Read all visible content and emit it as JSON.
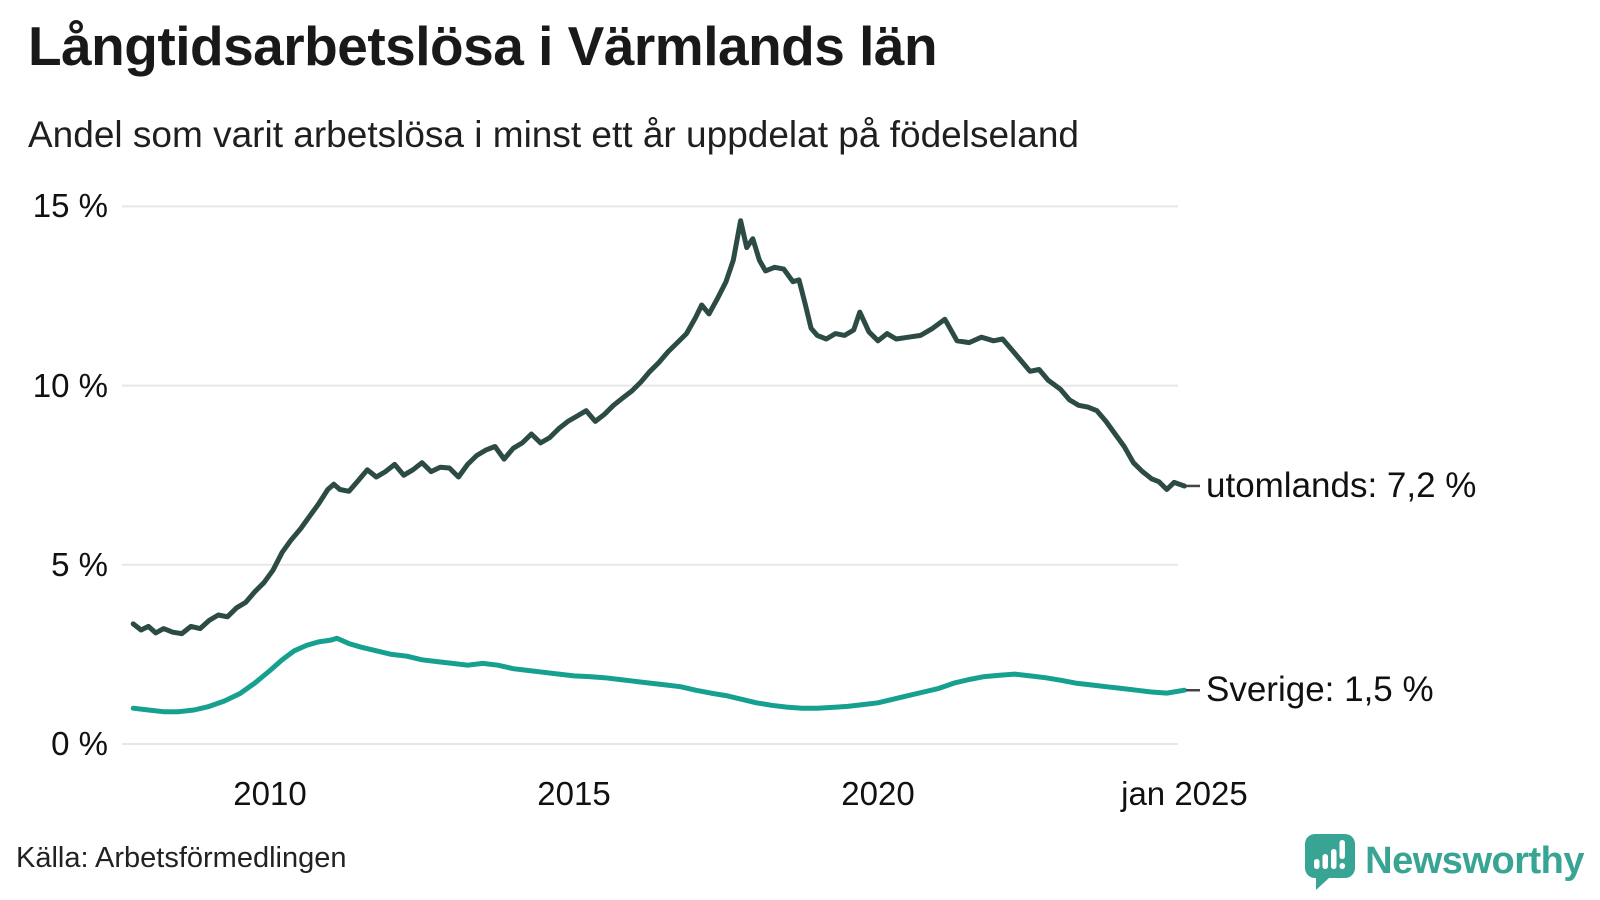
{
  "header": {
    "title": "Långtidsarbetslösa i Värmlands län",
    "subtitle": "Andel som varit arbetslösa i minst ett år uppdelat på födelseland"
  },
  "footer": {
    "source": "Källa: Arbetsförmedlingen",
    "brand": "Newsworthy",
    "brand_color": "#38a493",
    "brand_icon": "speech-bubble-bar-chart-exclamation"
  },
  "chart_data": {
    "type": "line",
    "title": "Långtidsarbetslösa i Värmlands län",
    "subtitle": "Andel som varit arbetslösa i minst ett år uppdelat på födelseland",
    "xlabel": "",
    "ylabel": "",
    "ylim": [
      0,
      15
    ],
    "xlim": [
      2007.7,
      2025.1
    ],
    "grid": true,
    "legend_position": "right-end-labels",
    "gridline_color": "#e7e7e7",
    "y_ticks": [
      {
        "label": "15 %",
        "value": 15
      },
      {
        "label": "10 %",
        "value": 10
      },
      {
        "label": "5 %",
        "value": 5
      },
      {
        "label": "0 %",
        "value": 0
      }
    ],
    "x_ticks": [
      {
        "label": "2010",
        "t": 2010
      },
      {
        "label": "2015",
        "t": 2015
      },
      {
        "label": "2020",
        "t": 2020
      },
      {
        "label": "jan 2025",
        "t": 2025.04
      }
    ],
    "series": [
      {
        "name": "utomlands",
        "end_label": "utomlands: 7,2 %",
        "end_value": 7.2,
        "color": "#2c4b44",
        "points": [
          [
            2007.75,
            3.35
          ],
          [
            2007.88,
            3.18
          ],
          [
            2008.0,
            3.28
          ],
          [
            2008.12,
            3.1
          ],
          [
            2008.25,
            3.22
          ],
          [
            2008.4,
            3.12
          ],
          [
            2008.55,
            3.08
          ],
          [
            2008.7,
            3.28
          ],
          [
            2008.85,
            3.22
          ],
          [
            2009.0,
            3.45
          ],
          [
            2009.15,
            3.6
          ],
          [
            2009.3,
            3.55
          ],
          [
            2009.45,
            3.8
          ],
          [
            2009.6,
            3.95
          ],
          [
            2009.75,
            4.25
          ],
          [
            2009.9,
            4.5
          ],
          [
            2010.05,
            4.85
          ],
          [
            2010.2,
            5.35
          ],
          [
            2010.35,
            5.7
          ],
          [
            2010.5,
            6.0
          ],
          [
            2010.65,
            6.35
          ],
          [
            2010.8,
            6.7
          ],
          [
            2010.95,
            7.1
          ],
          [
            2011.05,
            7.25
          ],
          [
            2011.15,
            7.1
          ],
          [
            2011.3,
            7.05
          ],
          [
            2011.45,
            7.35
          ],
          [
            2011.6,
            7.65
          ],
          [
            2011.75,
            7.45
          ],
          [
            2011.9,
            7.6
          ],
          [
            2012.05,
            7.8
          ],
          [
            2012.2,
            7.5
          ],
          [
            2012.35,
            7.65
          ],
          [
            2012.5,
            7.85
          ],
          [
            2012.65,
            7.6
          ],
          [
            2012.8,
            7.72
          ],
          [
            2012.95,
            7.7
          ],
          [
            2013.1,
            7.45
          ],
          [
            2013.25,
            7.8
          ],
          [
            2013.4,
            8.05
          ],
          [
            2013.55,
            8.2
          ],
          [
            2013.7,
            8.3
          ],
          [
            2013.85,
            7.95
          ],
          [
            2014.0,
            8.25
          ],
          [
            2014.15,
            8.4
          ],
          [
            2014.3,
            8.65
          ],
          [
            2014.45,
            8.4
          ],
          [
            2014.6,
            8.55
          ],
          [
            2014.75,
            8.8
          ],
          [
            2014.9,
            9.0
          ],
          [
            2015.05,
            9.15
          ],
          [
            2015.2,
            9.3
          ],
          [
            2015.35,
            9.0
          ],
          [
            2015.5,
            9.2
          ],
          [
            2015.65,
            9.45
          ],
          [
            2015.8,
            9.65
          ],
          [
            2015.95,
            9.85
          ],
          [
            2016.1,
            10.1
          ],
          [
            2016.25,
            10.4
          ],
          [
            2016.4,
            10.65
          ],
          [
            2016.55,
            10.95
          ],
          [
            2016.7,
            11.2
          ],
          [
            2016.85,
            11.45
          ],
          [
            2017.0,
            11.9
          ],
          [
            2017.1,
            12.25
          ],
          [
            2017.22,
            12.0
          ],
          [
            2017.35,
            12.4
          ],
          [
            2017.5,
            12.9
          ],
          [
            2017.62,
            13.5
          ],
          [
            2017.74,
            14.6
          ],
          [
            2017.84,
            13.85
          ],
          [
            2017.94,
            14.1
          ],
          [
            2018.05,
            13.5
          ],
          [
            2018.15,
            13.2
          ],
          [
            2018.3,
            13.3
          ],
          [
            2018.45,
            13.25
          ],
          [
            2018.6,
            12.9
          ],
          [
            2018.7,
            12.95
          ],
          [
            2018.8,
            12.3
          ],
          [
            2018.9,
            11.6
          ],
          [
            2019.0,
            11.4
          ],
          [
            2019.15,
            11.3
          ],
          [
            2019.3,
            11.45
          ],
          [
            2019.45,
            11.4
          ],
          [
            2019.6,
            11.55
          ],
          [
            2019.7,
            12.05
          ],
          [
            2019.85,
            11.5
          ],
          [
            2020.0,
            11.25
          ],
          [
            2020.15,
            11.45
          ],
          [
            2020.3,
            11.3
          ],
          [
            2020.5,
            11.35
          ],
          [
            2020.7,
            11.4
          ],
          [
            2020.9,
            11.6
          ],
          [
            2021.1,
            11.85
          ],
          [
            2021.3,
            11.25
          ],
          [
            2021.5,
            11.2
          ],
          [
            2021.7,
            11.35
          ],
          [
            2021.9,
            11.25
          ],
          [
            2022.05,
            11.3
          ],
          [
            2022.2,
            11.0
          ],
          [
            2022.35,
            10.7
          ],
          [
            2022.5,
            10.4
          ],
          [
            2022.65,
            10.45
          ],
          [
            2022.8,
            10.15
          ],
          [
            2023.0,
            9.9
          ],
          [
            2023.15,
            9.6
          ],
          [
            2023.3,
            9.45
          ],
          [
            2023.45,
            9.4
          ],
          [
            2023.6,
            9.3
          ],
          [
            2023.75,
            9.0
          ],
          [
            2023.9,
            8.65
          ],
          [
            2024.05,
            8.3
          ],
          [
            2024.2,
            7.85
          ],
          [
            2024.35,
            7.6
          ],
          [
            2024.5,
            7.4
          ],
          [
            2024.62,
            7.32
          ],
          [
            2024.75,
            7.1
          ],
          [
            2024.87,
            7.3
          ],
          [
            2025.04,
            7.2
          ]
        ]
      },
      {
        "name": "Sverige",
        "end_label": "Sverige: 1,5 %",
        "end_value": 1.5,
        "color": "#16a090",
        "points": [
          [
            2007.75,
            1.0
          ],
          [
            2008.0,
            0.95
          ],
          [
            2008.25,
            0.9
          ],
          [
            2008.5,
            0.9
          ],
          [
            2008.75,
            0.95
          ],
          [
            2009.0,
            1.05
          ],
          [
            2009.25,
            1.2
          ],
          [
            2009.5,
            1.4
          ],
          [
            2009.75,
            1.7
          ],
          [
            2010.0,
            2.05
          ],
          [
            2010.2,
            2.35
          ],
          [
            2010.4,
            2.6
          ],
          [
            2010.6,
            2.75
          ],
          [
            2010.8,
            2.85
          ],
          [
            2011.0,
            2.9
          ],
          [
            2011.1,
            2.95
          ],
          [
            2011.3,
            2.8
          ],
          [
            2011.5,
            2.7
          ],
          [
            2011.75,
            2.6
          ],
          [
            2012.0,
            2.5
          ],
          [
            2012.25,
            2.45
          ],
          [
            2012.5,
            2.35
          ],
          [
            2012.75,
            2.3
          ],
          [
            2013.0,
            2.25
          ],
          [
            2013.25,
            2.2
          ],
          [
            2013.5,
            2.25
          ],
          [
            2013.75,
            2.2
          ],
          [
            2014.0,
            2.1
          ],
          [
            2014.25,
            2.05
          ],
          [
            2014.5,
            2.0
          ],
          [
            2014.75,
            1.95
          ],
          [
            2015.0,
            1.9
          ],
          [
            2015.25,
            1.88
          ],
          [
            2015.5,
            1.85
          ],
          [
            2015.75,
            1.8
          ],
          [
            2016.0,
            1.75
          ],
          [
            2016.25,
            1.7
          ],
          [
            2016.5,
            1.65
          ],
          [
            2016.75,
            1.6
          ],
          [
            2017.0,
            1.5
          ],
          [
            2017.25,
            1.42
          ],
          [
            2017.5,
            1.35
          ],
          [
            2017.75,
            1.25
          ],
          [
            2018.0,
            1.15
          ],
          [
            2018.25,
            1.08
          ],
          [
            2018.5,
            1.03
          ],
          [
            2018.75,
            1.0
          ],
          [
            2019.0,
            1.0
          ],
          [
            2019.25,
            1.02
          ],
          [
            2019.5,
            1.05
          ],
          [
            2019.75,
            1.1
          ],
          [
            2020.0,
            1.15
          ],
          [
            2020.25,
            1.25
          ],
          [
            2020.5,
            1.35
          ],
          [
            2020.75,
            1.45
          ],
          [
            2021.0,
            1.55
          ],
          [
            2021.25,
            1.7
          ],
          [
            2021.5,
            1.8
          ],
          [
            2021.75,
            1.88
          ],
          [
            2022.0,
            1.92
          ],
          [
            2022.25,
            1.95
          ],
          [
            2022.5,
            1.9
          ],
          [
            2022.75,
            1.85
          ],
          [
            2023.0,
            1.78
          ],
          [
            2023.25,
            1.7
          ],
          [
            2023.5,
            1.65
          ],
          [
            2023.75,
            1.6
          ],
          [
            2024.0,
            1.55
          ],
          [
            2024.25,
            1.5
          ],
          [
            2024.5,
            1.45
          ],
          [
            2024.75,
            1.42
          ],
          [
            2025.04,
            1.5
          ]
        ]
      }
    ]
  }
}
